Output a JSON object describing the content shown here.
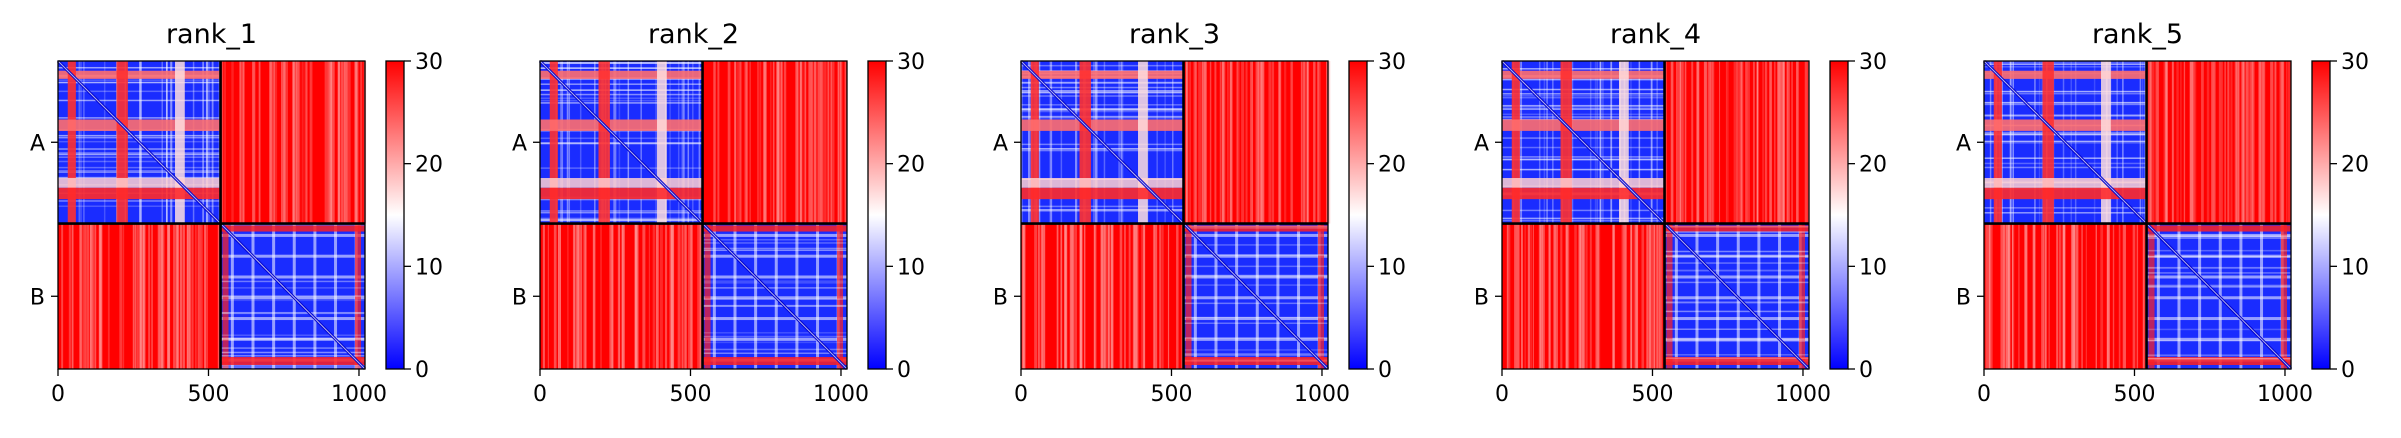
{
  "colors": {
    "low": "#0000ff",
    "mid": "#ffffff",
    "high": "#ff0000"
  },
  "chart_data": [
    {
      "type": "heatmap",
      "title": "rank_1",
      "chains": [
        "A",
        "B"
      ],
      "chain_boundary": 540,
      "xlim": [
        0,
        1020
      ],
      "xticks": [
        0,
        500,
        1000
      ],
      "colorbar": {
        "ticks": [
          0,
          10,
          20,
          30
        ],
        "range": [
          0,
          30
        ],
        "colormap": "bwr"
      }
    },
    {
      "type": "heatmap",
      "title": "rank_2",
      "chains": [
        "A",
        "B"
      ],
      "chain_boundary": 540,
      "xlim": [
        0,
        1020
      ],
      "xticks": [
        0,
        500,
        1000
      ],
      "colorbar": {
        "ticks": [
          0,
          10,
          20,
          30
        ],
        "range": [
          0,
          30
        ],
        "colormap": "bwr"
      }
    },
    {
      "type": "heatmap",
      "title": "rank_3",
      "chains": [
        "A",
        "B"
      ],
      "chain_boundary": 540,
      "xlim": [
        0,
        1020
      ],
      "xticks": [
        0,
        500,
        1000
      ],
      "colorbar": {
        "ticks": [
          0,
          10,
          20,
          30
        ],
        "range": [
          0,
          30
        ],
        "colormap": "bwr"
      }
    },
    {
      "type": "heatmap",
      "title": "rank_4",
      "chains": [
        "A",
        "B"
      ],
      "chain_boundary": 540,
      "xlim": [
        0,
        1020
      ],
      "xticks": [
        0,
        500,
        1000
      ],
      "colorbar": {
        "ticks": [
          0,
          10,
          20,
          30
        ],
        "range": [
          0,
          30
        ],
        "colormap": "bwr"
      }
    },
    {
      "type": "heatmap",
      "title": "rank_5",
      "chains": [
        "A",
        "B"
      ],
      "chain_boundary": 540,
      "xlim": [
        0,
        1020
      ],
      "xticks": [
        0,
        500,
        1000
      ],
      "colorbar": {
        "ticks": [
          0,
          10,
          20,
          30
        ],
        "range": [
          0,
          30
        ],
        "colormap": "bwr"
      }
    }
  ]
}
